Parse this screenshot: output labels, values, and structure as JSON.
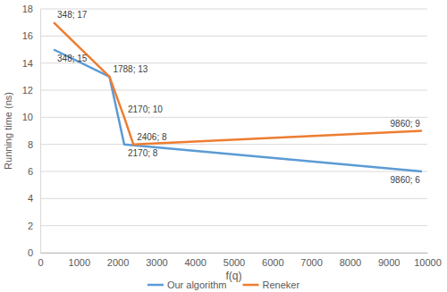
{
  "chart_data": {
    "type": "line",
    "x_label": "f(q)",
    "y_label": "Running time (ns)",
    "xlim": [
      0,
      10000
    ],
    "xticks": [
      0,
      1000,
      2000,
      3000,
      4000,
      5000,
      6000,
      7000,
      8000,
      9000,
      10000
    ],
    "ylim": [
      0,
      18
    ],
    "yticks": [
      0,
      2,
      4,
      6,
      8,
      10,
      12,
      14,
      16,
      18
    ],
    "grid": true,
    "legend": "bottom",
    "data_labels": true,
    "series": [
      {
        "name": "Our algorithm",
        "color": "#5B9BD5",
        "line_style": "solid",
        "marker": "none",
        "x": [
          348,
          1788,
          2170,
          9860
        ],
        "values": [
          15,
          13,
          8,
          6
        ],
        "value_labels": [
          "348; 15",
          null,
          "2170; 8",
          "9860; 6"
        ]
      },
      {
        "name": "Reneker",
        "color": "#ED7D31",
        "line_style": "solid",
        "marker": "none",
        "x": [
          348,
          1788,
          2170,
          2406,
          9860
        ],
        "values": [
          17,
          13,
          10,
          8,
          9
        ],
        "value_labels": [
          "348; 17",
          "1788; 13",
          "2170; 10",
          "2406; 8",
          "9860; 9"
        ]
      }
    ]
  }
}
